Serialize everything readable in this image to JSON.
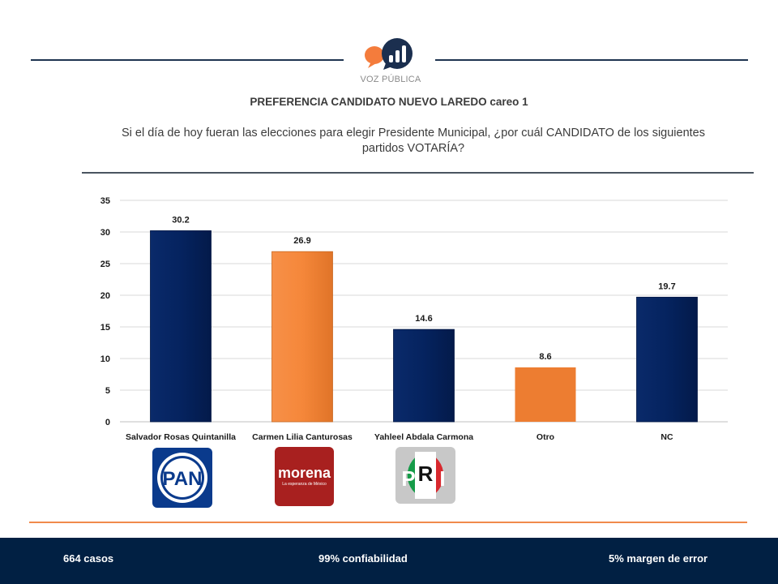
{
  "header": {
    "brand": "VOZ PÚBLICA",
    "title": "PREFERENCIA CANDIDATO NUEVO LAREDO careo 1",
    "question": "Si el día de hoy fueran las elecciones para elegir Presidente Municipal, ¿por cuál CANDIDATO de los siguientes partidos VOTARÍA?"
  },
  "chart_data": {
    "type": "bar",
    "title": "PREFERENCIA CANDIDATO NUEVO LAREDO careo 1",
    "xlabel": "",
    "ylabel": "",
    "categories": [
      "Salvador Rosas Quintanilla",
      "Carmen Lilia Canturosas",
      "Yahleel Abdala Carmona",
      "Otro",
      "NC"
    ],
    "values": [
      30.2,
      26.9,
      14.6,
      8.6,
      19.7
    ],
    "data_labels": [
      "30.2",
      "26.9",
      "14.6",
      "8.6",
      "19.7"
    ],
    "bar_colors": [
      "#05235f",
      "#f5873a",
      "#05235f",
      "#ed7d31",
      "#05235f"
    ],
    "ylim": [
      0,
      35
    ],
    "yticks": [
      0,
      5,
      10,
      15,
      20,
      25,
      30,
      35
    ],
    "grid": true,
    "legend": "none"
  },
  "party_logos": [
    {
      "name": "pan-logo",
      "label": "PAN",
      "color": "#0a3a8c"
    },
    {
      "name": "morena-logo",
      "label": "morena",
      "tagline": "La esperanza de México",
      "color": "#a8201f"
    },
    {
      "name": "pri-logo",
      "label": "PRI"
    }
  ],
  "footer": {
    "cases": "664 casos",
    "confidence": "99% confiabilidad",
    "margin": "5% margen de error"
  },
  "colors": {
    "navy": "#05235f",
    "orange": "#f5873a",
    "footer_bg": "#012043"
  }
}
